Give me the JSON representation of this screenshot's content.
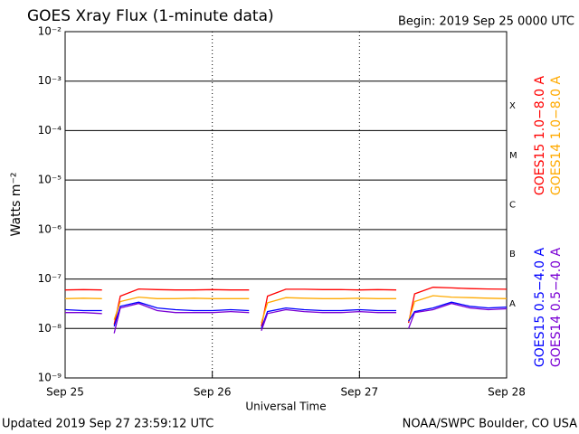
{
  "chart_data": {
    "type": "line",
    "title": "GOES Xray Flux (1-minute data)",
    "subtitle": "Begin:  2019 Sep 25 0000 UTC",
    "ylabel": "Watts m⁻²",
    "xlabel": "Universal Time",
    "footer_left": "Updated 2019 Sep 27 23:59:12 UTC",
    "footer_right": "NOAA/SWPC Boulder, CO USA",
    "log_y": true,
    "grid": true,
    "xlim": [
      0,
      72
    ],
    "xticks": [
      {
        "value": 0,
        "label": "Sep 25"
      },
      {
        "value": 24,
        "label": "Sep 26"
      },
      {
        "value": 48,
        "label": "Sep 27"
      },
      {
        "value": 72,
        "label": "Sep 28"
      }
    ],
    "ylim": [
      1e-09,
      0.01
    ],
    "yticks": [
      {
        "value": 1e-09,
        "label": "10⁻⁹"
      },
      {
        "value": 1e-08,
        "label": "10⁻⁸"
      },
      {
        "value": 1e-07,
        "label": "10⁻⁷"
      },
      {
        "value": 1e-06,
        "label": "10⁻⁶"
      },
      {
        "value": 1e-05,
        "label": "10⁻⁵"
      },
      {
        "value": 0.0001,
        "label": "10⁻⁴"
      },
      {
        "value": 0.001,
        "label": "10⁻³"
      },
      {
        "value": 0.01,
        "label": "10⁻²"
      }
    ],
    "flare_classes": [
      {
        "label": "A",
        "value": 1e-08
      },
      {
        "label": "B",
        "value": 1e-07
      },
      {
        "label": "C",
        "value": 1e-06
      },
      {
        "label": "M",
        "value": 1e-05
      },
      {
        "label": "X",
        "value": 0.0001
      }
    ],
    "x": [
      0,
      3,
      6,
      7.5,
      8,
      9,
      12,
      15,
      18,
      21,
      24,
      27,
      30,
      31.5,
      32,
      33,
      36,
      39,
      42,
      45,
      48,
      51,
      54,
      55.5,
      56,
      57,
      60,
      63,
      66,
      69,
      72
    ],
    "series": [
      {
        "name": "GOES15 1.0−8.0 A",
        "color": "#ff0000",
        "values": [
          6e-08,
          6.1e-08,
          6e-08,
          null,
          1.2e-08,
          4.5e-08,
          6.3e-08,
          6.1e-08,
          6e-08,
          6e-08,
          6.1e-08,
          6e-08,
          6e-08,
          null,
          1.1e-08,
          4.5e-08,
          6.2e-08,
          6.2e-08,
          6.1e-08,
          6.1e-08,
          6e-08,
          6.1e-08,
          6e-08,
          null,
          1.3e-08,
          5e-08,
          6.8e-08,
          6.6e-08,
          6.4e-08,
          6.3e-08,
          6.2e-08
        ]
      },
      {
        "name": "GOES14 1.0−8.0 A",
        "color": "#ffaa00",
        "values": [
          4e-08,
          4.1e-08,
          4e-08,
          null,
          1.5e-08,
          3.5e-08,
          4.3e-08,
          4e-08,
          4e-08,
          4.1e-08,
          4e-08,
          4e-08,
          4e-08,
          null,
          1.3e-08,
          3.3e-08,
          4.2e-08,
          4.1e-08,
          4e-08,
          4e-08,
          4.1e-08,
          4e-08,
          4e-08,
          null,
          1.4e-08,
          3.5e-08,
          4.6e-08,
          4.3e-08,
          4.2e-08,
          4.1e-08,
          4e-08
        ]
      },
      {
        "name": "GOES15 0.5−4.0 A",
        "color": "#0000ff",
        "values": [
          2.4e-08,
          2.3e-08,
          2.3e-08,
          null,
          1.1e-08,
          2.8e-08,
          3.4e-08,
          2.6e-08,
          2.4e-08,
          2.3e-08,
          2.3e-08,
          2.4e-08,
          2.3e-08,
          null,
          1e-08,
          2.2e-08,
          2.6e-08,
          2.4e-08,
          2.3e-08,
          2.3e-08,
          2.4e-08,
          2.3e-08,
          2.3e-08,
          null,
          1.4e-08,
          2.2e-08,
          2.6e-08,
          3.4e-08,
          2.8e-08,
          2.6e-08,
          2.7e-08
        ]
      },
      {
        "name": "GOES14 0.5−4.0 A",
        "color": "#7a00d4",
        "values": [
          2.1e-08,
          2.1e-08,
          2e-08,
          null,
          8e-09,
          2.6e-08,
          3.2e-08,
          2.3e-08,
          2.1e-08,
          2.1e-08,
          2.1e-08,
          2.2e-08,
          2.1e-08,
          null,
          9e-09,
          2e-08,
          2.4e-08,
          2.2e-08,
          2.1e-08,
          2.1e-08,
          2.2e-08,
          2.1e-08,
          2.1e-08,
          null,
          1e-08,
          2.1e-08,
          2.4e-08,
          3.2e-08,
          2.6e-08,
          2.4e-08,
          2.5e-08
        ]
      }
    ]
  }
}
